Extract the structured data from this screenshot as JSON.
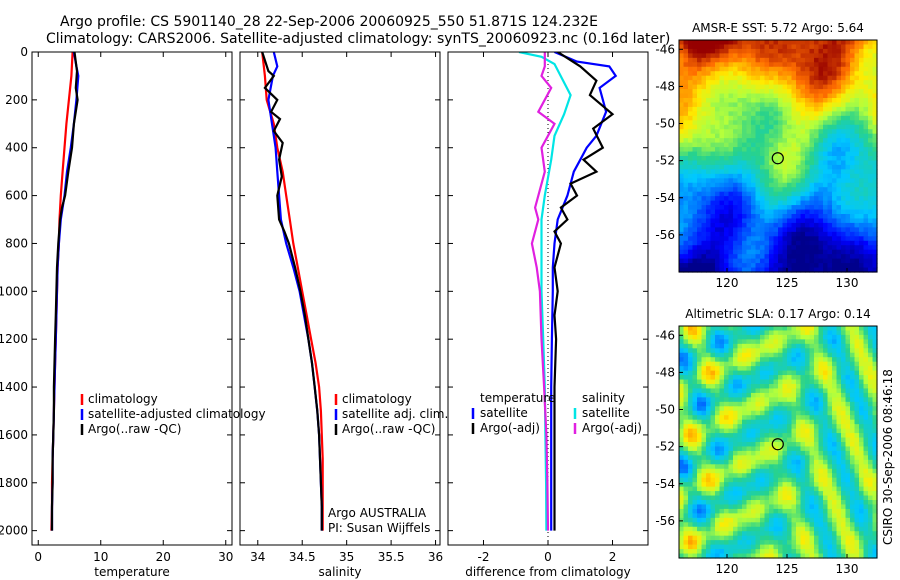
{
  "header": {
    "line1": "Argo profile: CS 5901140_28 22-Sep-2006 20060925_550 51.871S 124.232E",
    "line2": "Climatology: CARS2006. Satellite-adjusted climatology: synTS_20060923.nc (0.16d later)"
  },
  "side_label": "CSIRO 30-Sep-2006 08:46:18",
  "colors": {
    "climatology": "#ff0000",
    "satellite": "#0000ff",
    "argo": "#000000",
    "sat_salinity": "#00e5e5",
    "argo_salinity": "#e020e0"
  },
  "chart_data": [
    {
      "id": "temperature-profile",
      "type": "line",
      "xlabel": "temperature",
      "xlim": [
        -1,
        31
      ],
      "xticks": [
        0,
        10,
        20,
        30
      ],
      "ylim": [
        2060,
        0
      ],
      "yticks": [
        0,
        200,
        400,
        600,
        800,
        1000,
        1200,
        1400,
        1600,
        1800,
        2000
      ],
      "legend": [
        "climatology",
        "satellite-adjusted climatology",
        "Argo(..raw -QC)"
      ],
      "series": [
        {
          "name": "climatology",
          "color": "#ff0000",
          "points": [
            [
              5.5,
              0
            ],
            [
              5.3,
              100
            ],
            [
              4.9,
              200
            ],
            [
              4.5,
              300
            ],
            [
              4.2,
              400
            ],
            [
              3.9,
              500
            ],
            [
              3.6,
              600
            ],
            [
              3.4,
              700
            ],
            [
              3.3,
              800
            ],
            [
              3.1,
              900
            ],
            [
              3.0,
              1000
            ],
            [
              2.9,
              1100
            ],
            [
              2.8,
              1200
            ],
            [
              2.7,
              1300
            ],
            [
              2.6,
              1400
            ],
            [
              2.5,
              1500
            ],
            [
              2.4,
              1600
            ],
            [
              2.3,
              1700
            ],
            [
              2.2,
              1800
            ],
            [
              2.2,
              1900
            ],
            [
              2.1,
              2000
            ]
          ]
        },
        {
          "name": "satellite-adjusted climatology",
          "color": "#0000ff",
          "points": [
            [
              5.7,
              0
            ],
            [
              6.1,
              60
            ],
            [
              6.4,
              100
            ],
            [
              6.1,
              200
            ],
            [
              5.7,
              300
            ],
            [
              5.2,
              400
            ],
            [
              4.6,
              500
            ],
            [
              4.2,
              600
            ],
            [
              3.6,
              700
            ],
            [
              3.3,
              800
            ],
            [
              3.1,
              900
            ],
            [
              3.0,
              1000
            ],
            [
              2.9,
              1100
            ],
            [
              2.8,
              1200
            ],
            [
              2.7,
              1300
            ],
            [
              2.6,
              1400
            ],
            [
              2.5,
              1500
            ],
            [
              2.4,
              1600
            ],
            [
              2.3,
              1700
            ],
            [
              2.3,
              1800
            ],
            [
              2.2,
              1900
            ],
            [
              2.2,
              2000
            ]
          ]
        },
        {
          "name": "Argo(..raw -QC)",
          "color": "#000000",
          "points": [
            [
              5.8,
              0
            ],
            [
              6.2,
              80
            ],
            [
              6.0,
              150
            ],
            [
              6.3,
              200
            ],
            [
              5.7,
              300
            ],
            [
              5.4,
              400
            ],
            [
              4.8,
              500
            ],
            [
              4.3,
              600
            ],
            [
              3.8,
              650
            ],
            [
              3.5,
              700
            ],
            [
              3.2,
              800
            ],
            [
              3.0,
              900
            ],
            [
              2.9,
              1000
            ],
            [
              2.8,
              1100
            ],
            [
              2.7,
              1200
            ],
            [
              2.6,
              1300
            ],
            [
              2.5,
              1400
            ],
            [
              2.5,
              1500
            ],
            [
              2.4,
              1600
            ],
            [
              2.3,
              1700
            ],
            [
              2.3,
              1800
            ],
            [
              2.2,
              1900
            ],
            [
              2.2,
              2000
            ]
          ]
        }
      ]
    },
    {
      "id": "salinity-profile",
      "type": "line",
      "xlabel": "salinity",
      "xlim": [
        33.8,
        36.05
      ],
      "xticks": [
        34,
        34.5,
        35,
        35.5,
        36
      ],
      "ylim": [
        2060,
        0
      ],
      "legend": [
        "climatology",
        "satellite adj. clim.",
        "Argo(..raw -QC)"
      ],
      "annotation": [
        "Argo AUSTRALIA",
        "PI: Susan Wijffels"
      ],
      "series": [
        {
          "name": "climatology",
          "color": "#ff0000",
          "points": [
            [
              34.05,
              0
            ],
            [
              34.08,
              100
            ],
            [
              34.1,
              200
            ],
            [
              34.18,
              300
            ],
            [
              34.22,
              400
            ],
            [
              34.28,
              500
            ],
            [
              34.32,
              600
            ],
            [
              34.36,
              700
            ],
            [
              34.4,
              800
            ],
            [
              34.45,
              900
            ],
            [
              34.5,
              1000
            ],
            [
              34.55,
              1100
            ],
            [
              34.6,
              1200
            ],
            [
              34.65,
              1300
            ],
            [
              34.69,
              1400
            ],
            [
              34.71,
              1500
            ],
            [
              34.72,
              1600
            ],
            [
              34.73,
              1700
            ],
            [
              34.73,
              1800
            ],
            [
              34.73,
              1900
            ],
            [
              34.73,
              2000
            ]
          ]
        },
        {
          "name": "satellite adj. clim.",
          "color": "#0000ff",
          "points": [
            [
              34.18,
              0
            ],
            [
              34.22,
              60
            ],
            [
              34.17,
              100
            ],
            [
              34.12,
              200
            ],
            [
              34.16,
              300
            ],
            [
              34.2,
              400
            ],
            [
              34.22,
              500
            ],
            [
              34.24,
              600
            ],
            [
              34.26,
              700
            ],
            [
              34.32,
              800
            ],
            [
              34.4,
              900
            ],
            [
              34.47,
              1000
            ],
            [
              34.52,
              1100
            ],
            [
              34.57,
              1200
            ],
            [
              34.61,
              1300
            ],
            [
              34.64,
              1400
            ],
            [
              34.67,
              1500
            ],
            [
              34.69,
              1600
            ],
            [
              34.7,
              1700
            ],
            [
              34.71,
              1800
            ],
            [
              34.72,
              1900
            ],
            [
              34.72,
              2000
            ]
          ]
        },
        {
          "name": "Argo(..raw -QC)",
          "color": "#000000",
          "points": [
            [
              34.05,
              0
            ],
            [
              34.12,
              80
            ],
            [
              34.18,
              100
            ],
            [
              34.08,
              150
            ],
            [
              34.22,
              200
            ],
            [
              34.15,
              250
            ],
            [
              34.25,
              280
            ],
            [
              34.18,
              330
            ],
            [
              34.28,
              380
            ],
            [
              34.24,
              450
            ],
            [
              34.27,
              520
            ],
            [
              34.22,
              600
            ],
            [
              34.24,
              700
            ],
            [
              34.3,
              750
            ],
            [
              34.35,
              800
            ],
            [
              34.42,
              900
            ],
            [
              34.48,
              1000
            ],
            [
              34.53,
              1100
            ],
            [
              34.57,
              1200
            ],
            [
              34.61,
              1300
            ],
            [
              34.64,
              1400
            ],
            [
              34.67,
              1500
            ],
            [
              34.69,
              1600
            ],
            [
              34.7,
              1700
            ],
            [
              34.71,
              1800
            ],
            [
              34.72,
              1900
            ],
            [
              34.72,
              2000
            ]
          ]
        }
      ]
    },
    {
      "id": "difference-profile",
      "type": "line",
      "xlabel": "difference from climatology",
      "xlim": [
        -3.1,
        3.1
      ],
      "xticks": [
        -2,
        0,
        2
      ],
      "ylim": [
        2060,
        0
      ],
      "legend_left_title": "temperature",
      "legend_left": [
        "satellite",
        "Argo(-adj)"
      ],
      "legend_right_title": "salinity",
      "legend_right": [
        "satellite",
        "Argo(-adj)"
      ],
      "series": [
        {
          "name": "temperature satellite",
          "color": "#0000ff",
          "points": [
            [
              0.2,
              0
            ],
            [
              0.9,
              40
            ],
            [
              1.9,
              60
            ],
            [
              2.1,
              100
            ],
            [
              1.6,
              150
            ],
            [
              1.8,
              250
            ],
            [
              1.5,
              350
            ],
            [
              1.2,
              400
            ],
            [
              1.0,
              450
            ],
            [
              0.8,
              500
            ],
            [
              0.6,
              600
            ],
            [
              0.3,
              700
            ],
            [
              0.2,
              800
            ],
            [
              0.15,
              900
            ],
            [
              0.15,
              1000
            ],
            [
              0.12,
              1200
            ],
            [
              0.1,
              1400
            ],
            [
              0.1,
              1600
            ],
            [
              0.1,
              1800
            ],
            [
              0.1,
              2000
            ]
          ]
        },
        {
          "name": "temperature Argo(-adj)",
          "color": "#000000",
          "points": [
            [
              0.3,
              0
            ],
            [
              1.0,
              60
            ],
            [
              1.5,
              120
            ],
            [
              1.3,
              180
            ],
            [
              2.0,
              260
            ],
            [
              1.4,
              320
            ],
            [
              1.7,
              400
            ],
            [
              1.1,
              450
            ],
            [
              1.5,
              500
            ],
            [
              0.7,
              550
            ],
            [
              0.9,
              600
            ],
            [
              0.4,
              650
            ],
            [
              0.6,
              700
            ],
            [
              0.2,
              750
            ],
            [
              0.4,
              800
            ],
            [
              0.2,
              900
            ],
            [
              0.3,
              1000
            ],
            [
              0.2,
              1100
            ],
            [
              0.25,
              1200
            ],
            [
              0.2,
              1400
            ],
            [
              0.2,
              1600
            ],
            [
              0.2,
              1800
            ],
            [
              0.2,
              2000
            ]
          ]
        },
        {
          "name": "salinity satellite",
          "color": "#00e5e5",
          "points": [
            [
              -0.9,
              0
            ],
            [
              -0.2,
              20
            ],
            [
              0.2,
              50
            ],
            [
              0.7,
              180
            ],
            [
              0.5,
              260
            ],
            [
              0.2,
              350
            ],
            [
              0.1,
              450
            ],
            [
              -0.1,
              600
            ],
            [
              -0.2,
              700
            ],
            [
              -0.2,
              850
            ],
            [
              -0.2,
              1000
            ],
            [
              -0.15,
              1200
            ],
            [
              -0.1,
              1400
            ],
            [
              -0.08,
              1600
            ],
            [
              -0.06,
              1800
            ],
            [
              -0.05,
              2000
            ]
          ]
        },
        {
          "name": "salinity Argo(-adj)",
          "color": "#e020e0",
          "points": [
            [
              -0.1,
              0
            ],
            [
              -0.1,
              60
            ],
            [
              -0.2,
              100
            ],
            [
              0.1,
              150
            ],
            [
              -0.3,
              250
            ],
            [
              0.2,
              300
            ],
            [
              -0.2,
              400
            ],
            [
              -0.1,
              500
            ],
            [
              -0.4,
              650
            ],
            [
              -0.3,
              700
            ],
            [
              -0.5,
              800
            ],
            [
              -0.35,
              900
            ],
            [
              -0.25,
              1000
            ],
            [
              -0.2,
              1200
            ],
            [
              -0.12,
              1400
            ],
            [
              -0.05,
              1600
            ],
            [
              -0.02,
              1800
            ],
            [
              0.0,
              2000
            ]
          ]
        }
      ]
    },
    {
      "id": "sst-map",
      "type": "heatmap",
      "title": "AMSR-E SST: 5.72  Argo: 5.64",
      "xlim": [
        116,
        132.5
      ],
      "ylim": [
        -58,
        -45.5
      ],
      "xticks": [
        120,
        125,
        130
      ],
      "yticks": [
        -46,
        -48,
        -50,
        -52,
        -54,
        -56
      ],
      "marker": [
        124.232,
        -51.871
      ]
    },
    {
      "id": "sla-map",
      "type": "heatmap",
      "title": "Altimetric SLA: 0.17  Argo: 0.14",
      "xlim": [
        116,
        132.5
      ],
      "ylim": [
        -58,
        -45.5
      ],
      "xticks": [
        120,
        125,
        130
      ],
      "yticks": [
        -46,
        -48,
        -50,
        -52,
        -54,
        -56
      ],
      "marker": [
        124.232,
        -51.871
      ]
    }
  ]
}
